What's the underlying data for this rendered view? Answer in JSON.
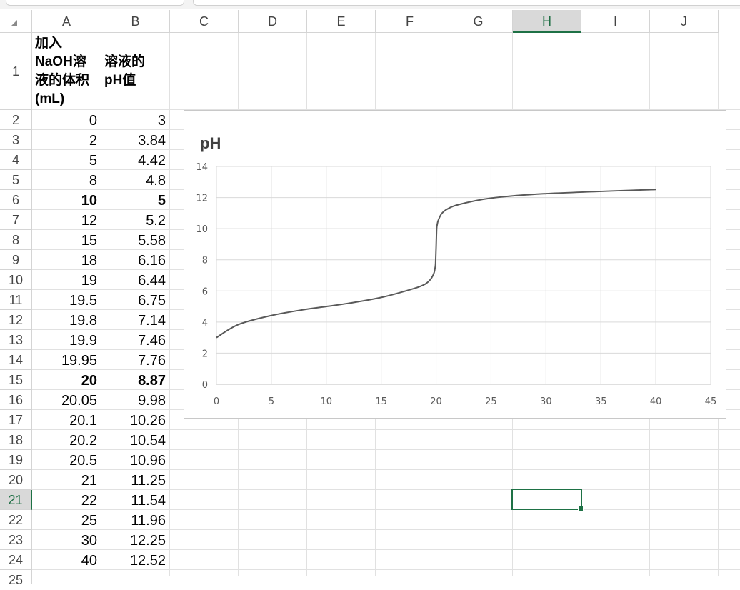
{
  "sheet": {
    "columns": [
      "A",
      "B",
      "C",
      "D",
      "E",
      "F",
      "G",
      "H",
      "I",
      "J"
    ],
    "selected_column": "H",
    "rows": [
      "1",
      "2",
      "3",
      "4",
      "5",
      "6",
      "7",
      "8",
      "9",
      "10",
      "11",
      "12",
      "13",
      "14",
      "15",
      "16",
      "17",
      "18",
      "19",
      "20",
      "21",
      "22",
      "23",
      "24",
      "25"
    ],
    "selected_row": "21",
    "header_a": [
      "加入",
      "NaOH溶",
      "液的体积",
      "(mL)"
    ],
    "header_b": [
      "溶液的",
      "pH值"
    ],
    "data": [
      {
        "a": "0",
        "b": "3",
        "bold": false
      },
      {
        "a": "2",
        "b": "3.84",
        "bold": false
      },
      {
        "a": "5",
        "b": "4.42",
        "bold": false
      },
      {
        "a": "8",
        "b": "4.8",
        "bold": false
      },
      {
        "a": "10",
        "b": "5",
        "bold": true
      },
      {
        "a": "12",
        "b": "5.2",
        "bold": false
      },
      {
        "a": "15",
        "b": "5.58",
        "bold": false
      },
      {
        "a": "18",
        "b": "6.16",
        "bold": false
      },
      {
        "a": "19",
        "b": "6.44",
        "bold": false
      },
      {
        "a": "19.5",
        "b": "6.75",
        "bold": false
      },
      {
        "a": "19.8",
        "b": "7.14",
        "bold": false
      },
      {
        "a": "19.9",
        "b": "7.46",
        "bold": false
      },
      {
        "a": "19.95",
        "b": "7.76",
        "bold": false
      },
      {
        "a": "20",
        "b": "8.87",
        "bold": true
      },
      {
        "a": "20.05",
        "b": "9.98",
        "bold": false
      },
      {
        "a": "20.1",
        "b": "10.26",
        "bold": false
      },
      {
        "a": "20.2",
        "b": "10.54",
        "bold": false
      },
      {
        "a": "20.5",
        "b": "10.96",
        "bold": false
      },
      {
        "a": "21",
        "b": "11.25",
        "bold": false
      },
      {
        "a": "22",
        "b": "11.54",
        "bold": false
      },
      {
        "a": "25",
        "b": "11.96",
        "bold": false
      },
      {
        "a": "30",
        "b": "12.25",
        "bold": false
      },
      {
        "a": "40",
        "b": "12.52",
        "bold": false
      }
    ]
  },
  "chart_data": {
    "type": "line",
    "title": "pH",
    "xlabel": "",
    "ylabel": "",
    "xlim": [
      0,
      45
    ],
    "ylim": [
      0,
      14
    ],
    "xticks": [
      "0",
      "5",
      "10",
      "15",
      "20",
      "25",
      "30",
      "35",
      "40",
      "45"
    ],
    "yticks": [
      "0",
      "2",
      "4",
      "6",
      "8",
      "10",
      "12",
      "14"
    ],
    "grid": true,
    "line_color": "#595959",
    "series": [
      {
        "name": "",
        "x": [
          0,
          2,
          5,
          8,
          10,
          12,
          15,
          18,
          19,
          19.5,
          19.8,
          19.9,
          19.95,
          20,
          20.05,
          20.1,
          20.2,
          20.5,
          21,
          22,
          25,
          30,
          40
        ],
        "values": [
          3,
          3.84,
          4.42,
          4.8,
          5,
          5.2,
          5.58,
          6.16,
          6.44,
          6.75,
          7.14,
          7.46,
          7.76,
          8.87,
          9.98,
          10.26,
          10.54,
          10.96,
          11.25,
          11.54,
          11.96,
          12.25,
          12.52
        ]
      }
    ]
  }
}
